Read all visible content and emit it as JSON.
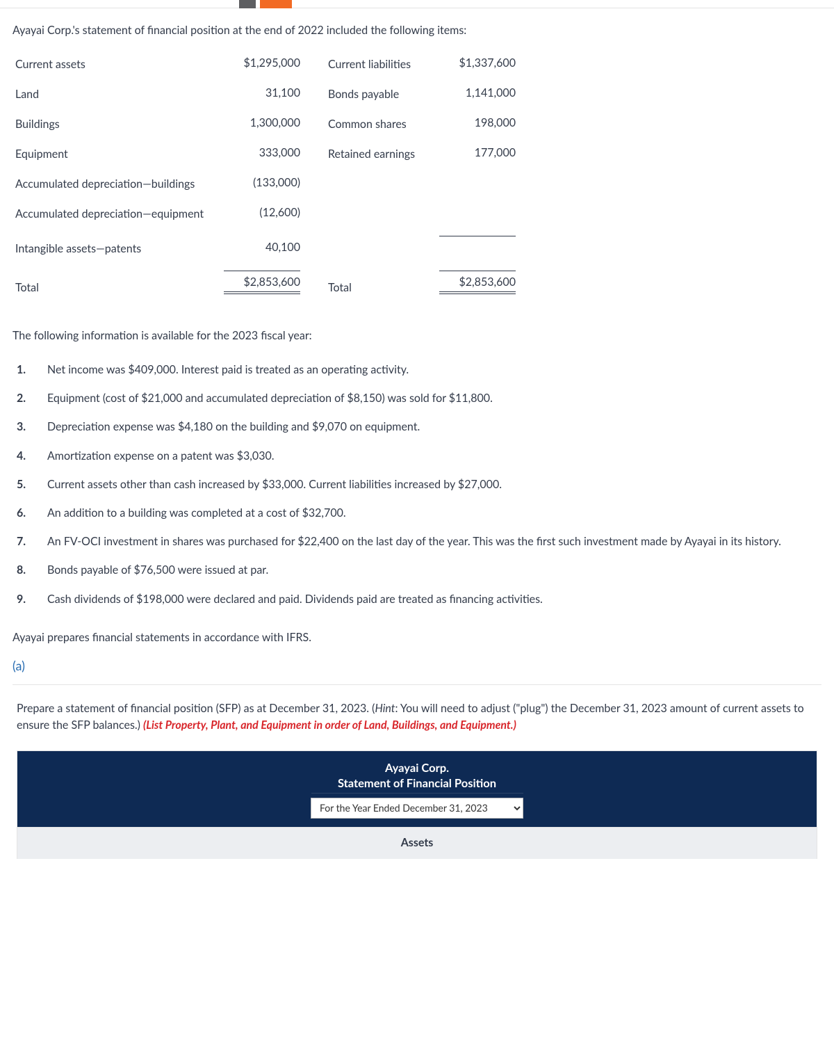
{
  "colors": {
    "text": "#333b4a",
    "link": "#2b6fb3",
    "red": "#d8252a",
    "navy": "#0e2a54",
    "tab_dark": "#5d5e61",
    "tab_orange": "#f26a24",
    "grey_section": "#eceef1",
    "border": "#e4e4e4"
  },
  "intro": "Ayayai Corp.'s statement of financial position at the end of 2022 included the following items:",
  "fp": {
    "left": [
      {
        "label": "Current assets",
        "value": "$1,295,000"
      },
      {
        "label": "Land",
        "value": "31,100"
      },
      {
        "label": "Buildings",
        "value": "1,300,000"
      },
      {
        "label": "Equipment",
        "value": "333,000"
      },
      {
        "label": "Accumulated depreciation—buildings",
        "value": "(133,000)"
      },
      {
        "label": "Accumulated depreciation—equipment",
        "value": "(12,600)"
      },
      {
        "label": "Intangible assets—patents",
        "value": "40,100"
      },
      {
        "label": "Total",
        "value": "$2,853,600"
      }
    ],
    "right": [
      {
        "label": "Current liabilities",
        "value": "$1,337,600"
      },
      {
        "label": "Bonds payable",
        "value": "1,141,000"
      },
      {
        "label": "Common shares",
        "value": "198,000"
      },
      {
        "label": "Retained earnings",
        "value": "177,000"
      },
      {
        "label": "Total",
        "value": "$2,853,600"
      }
    ]
  },
  "info_heading": "The following information is available for the 2023 fiscal year:",
  "info": [
    "Net income was $409,000. Interest paid is treated as an operating activity.",
    "Equipment (cost of $21,000 and accumulated depreciation of $8,150) was sold for $11,800.",
    "Depreciation expense was $4,180 on the building and $9,070 on equipment.",
    "Amortization expense on a patent was $3,030.",
    "Current assets other than cash increased by $33,000. Current liabilities increased by $27,000.",
    "An addition to a building was completed at a cost of $32,700.",
    "An FV-OCI investment in shares was purchased for $22,400 on the last day of the year. This was the first such investment made by Ayayai in its history.",
    "Bonds payable of $76,500 were issued at par.",
    "Cash dividends of $198,000 were declared and paid. Dividends paid are treated as financing activities."
  ],
  "ifrs": "Ayayai prepares financial statements in accordance with IFRS.",
  "part_label": "(a)",
  "prepare": {
    "p1": "Prepare a statement of financial position (SFP) as at December 31, 2023. (",
    "hint_label": "Hint",
    "p2": ": You will need to adjust (\"plug\") the December 31, 2023 amount of current assets to ensure the SFP balances.) ",
    "red": "(List Property, Plant, and Equipment in order of Land, Buildings, and Equipment.)"
  },
  "worksheet": {
    "company": "Ayayai Corp.",
    "statement": "Statement of Financial Position",
    "period_selected": "For the Year Ended December 31, 2023",
    "section": "Assets"
  }
}
